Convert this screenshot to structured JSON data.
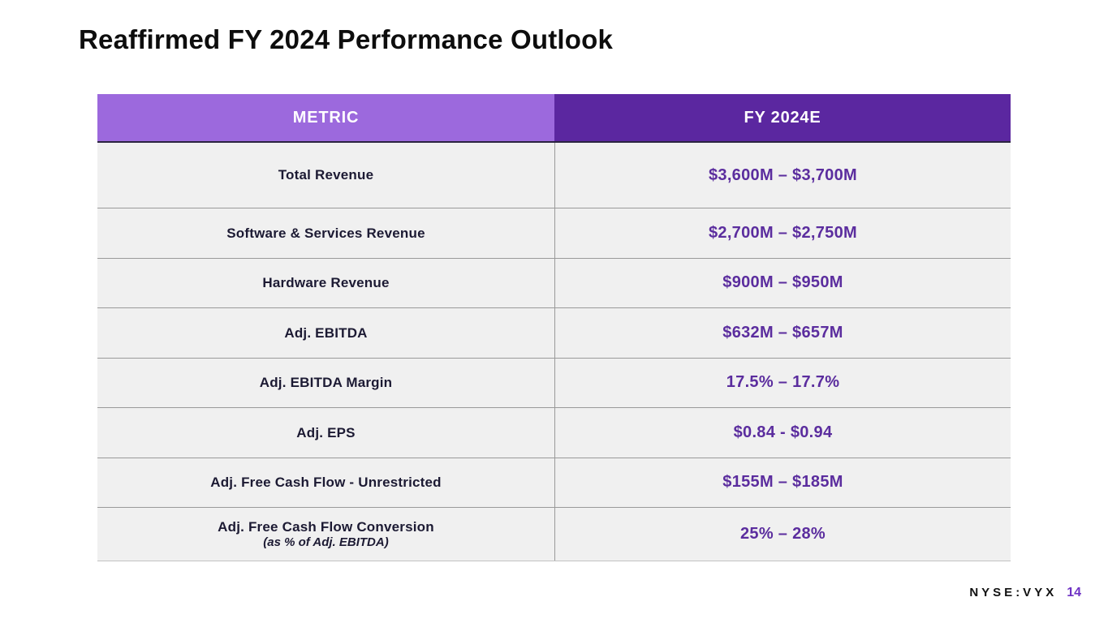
{
  "slide": {
    "title": "Reaffirmed FY 2024 Performance Outlook",
    "footer": {
      "ticker": "NYSE:VYX",
      "page_number": "14"
    }
  },
  "table": {
    "headers": {
      "metric": "METRIC",
      "fy2024e": "FY 2024E"
    },
    "rows": [
      {
        "metric": "Total Revenue",
        "value": "$3,600M – $3,700M"
      },
      {
        "metric": "Software & Services Revenue",
        "value": "$2,700M – $2,750M"
      },
      {
        "metric": "Hardware Revenue",
        "value": "$900M – $950M"
      },
      {
        "metric": "Adj. EBITDA",
        "value": "$632M – $657M"
      },
      {
        "metric": "Adj. EBITDA Margin",
        "value": "17.5% – 17.7%"
      },
      {
        "metric": "Adj. EPS",
        "value": "$0.84 - $0.94"
      },
      {
        "metric": "Adj. Free Cash Flow - Unrestricted",
        "value": "$155M – $185M"
      },
      {
        "metric": "Adj. Free Cash Flow Conversion",
        "metric_note": "(as % of Adj. EBITDA)",
        "value": "25% – 28%"
      }
    ]
  },
  "colors": {
    "header_metric_bg": "#9c69dd",
    "header_fy2024e_bg": "#5b27a0",
    "value_text": "#5b2d9e",
    "metric_text": "#1c1a33",
    "row_bg": "#f0f0f0",
    "row_border": "#9a9a9a",
    "page_number_text": "#6f32c4"
  }
}
